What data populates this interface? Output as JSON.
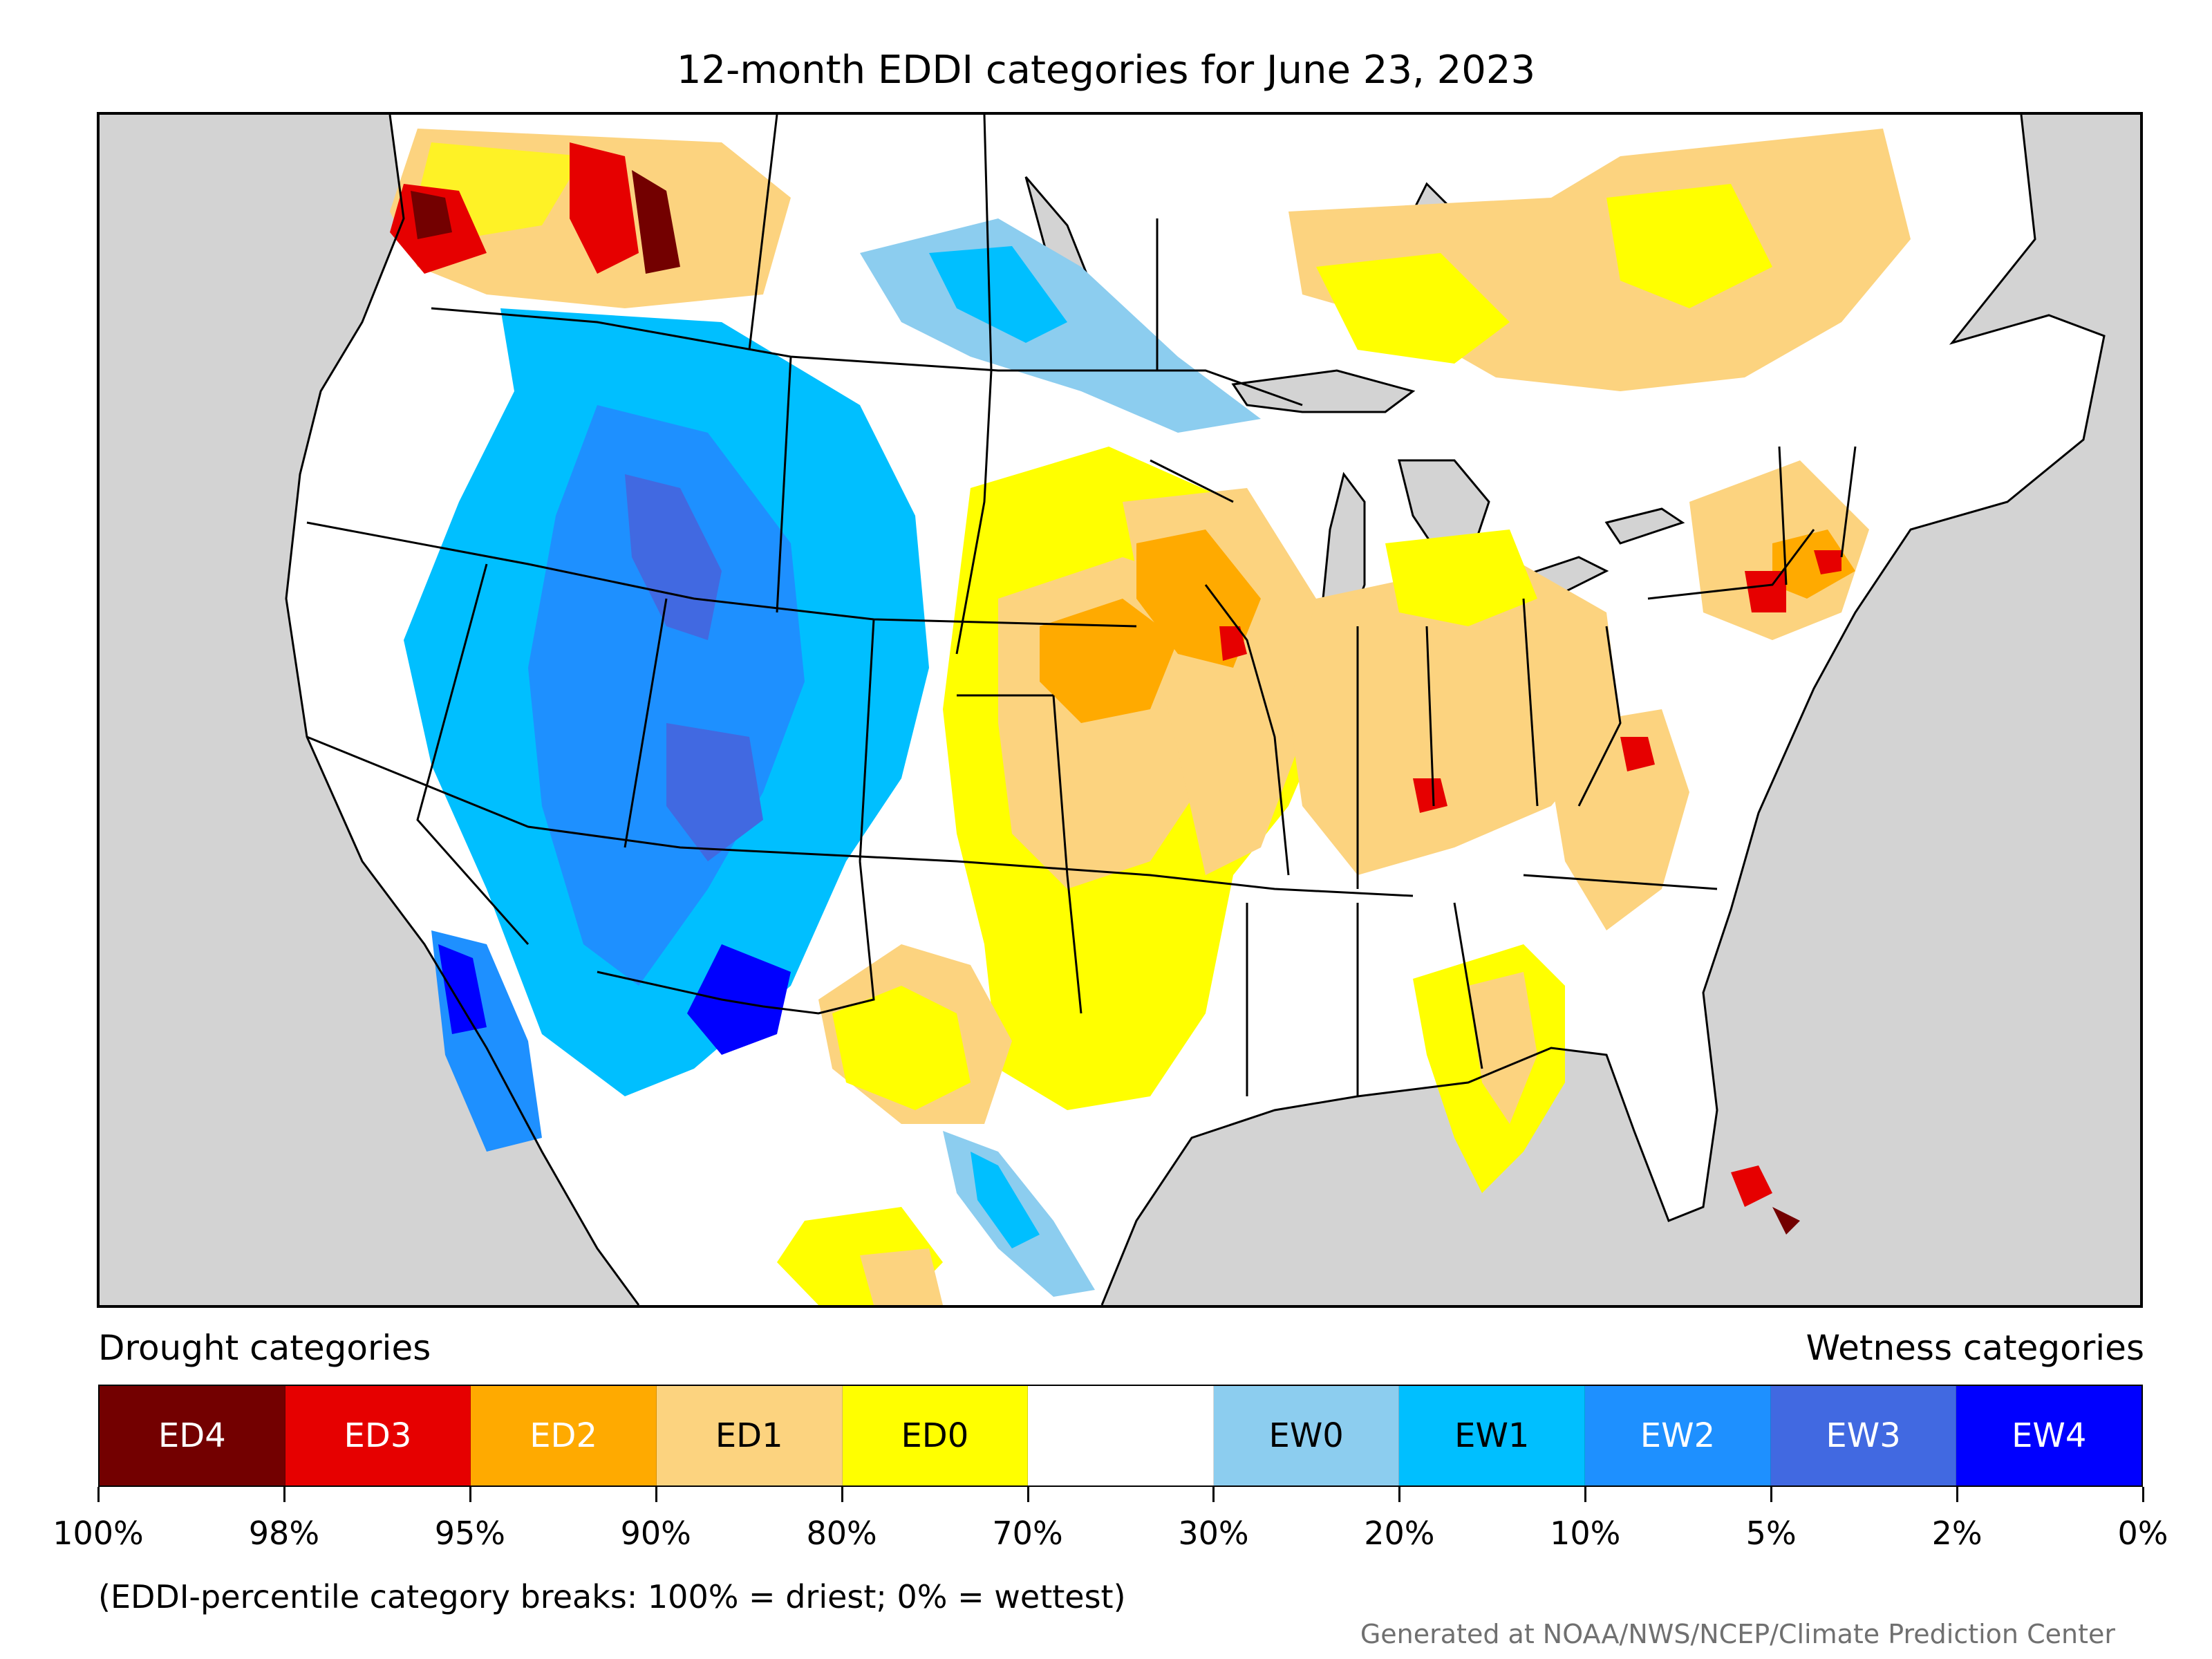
{
  "title": "12-month EDDI categories for June 23, 2023",
  "legend": {
    "drought_heading": "Drought categories",
    "wetness_heading": "Wetness categories",
    "categories": [
      {
        "label": "ED4",
        "color": "#730000",
        "text_color": "#ffffff"
      },
      {
        "label": "ED3",
        "color": "#e60000",
        "text_color": "#ffffff"
      },
      {
        "label": "ED2",
        "color": "#ffaa00",
        "text_color": "#ffffff"
      },
      {
        "label": "ED1",
        "color": "#fcd37f",
        "text_color": "#000000"
      },
      {
        "label": "ED0",
        "color": "#ffff00",
        "text_color": "#000000"
      },
      {
        "label": "",
        "color": "#ffffff",
        "text_color": "#000000"
      },
      {
        "label": "EW0",
        "color": "#8ccdef",
        "text_color": "#000000"
      },
      {
        "label": "EW1",
        "color": "#00bfff",
        "text_color": "#000000"
      },
      {
        "label": "EW2",
        "color": "#1e90ff",
        "text_color": "#ffffff"
      },
      {
        "label": "EW3",
        "color": "#4169e1",
        "text_color": "#ffffff"
      },
      {
        "label": "EW4",
        "color": "#0000ff",
        "text_color": "#ffffff"
      }
    ],
    "tick_labels": [
      "100%",
      "98%",
      "95%",
      "90%",
      "80%",
      "70%",
      "30%",
      "20%",
      "10%",
      "5%",
      "2%",
      "0%"
    ]
  },
  "footnote": "(EDDI-percentile category breaks: 100% = driest; 0% = wettest)",
  "credit": "Generated at NOAA/NWS/NCEP/Climate Prediction Center",
  "map": {
    "ocean_color": "#d3d3d3",
    "land_color": "#ffffff",
    "border_color": "#000000"
  }
}
